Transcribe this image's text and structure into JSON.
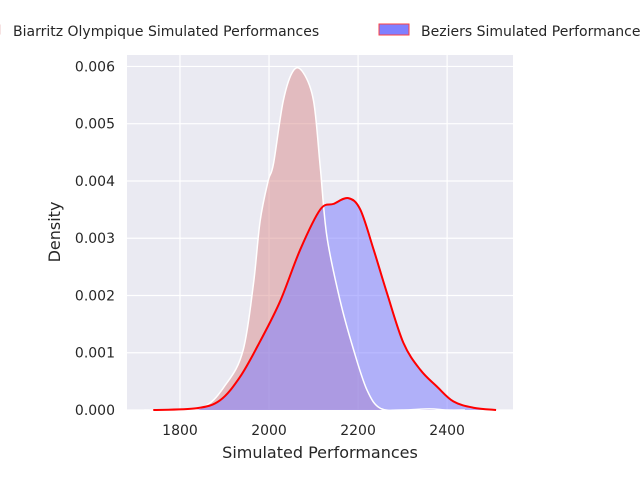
{
  "chart_data": {
    "type": "area",
    "title": "",
    "xlabel": "Simulated Performances",
    "ylabel": "Density",
    "xlim": [
      1681,
      2548
    ],
    "ylim": [
      0,
      0.0062
    ],
    "xticks": [
      1800,
      2000,
      2200,
      2400
    ],
    "xtick_labels": [
      "1800",
      "2000",
      "2200",
      "2400"
    ],
    "yticks": [
      0,
      0.001,
      0.002,
      0.003,
      0.004,
      0.005,
      0.006
    ],
    "ytick_labels": [
      "0.000",
      "0.001",
      "0.002",
      "0.003",
      "0.004",
      "0.005",
      "0.006"
    ],
    "grid": true,
    "legend_placement": "top-center outside",
    "series": [
      {
        "name": "Biarritz Olympique Simulated Performances",
        "fill": "#d98c8c",
        "edge": "#ffffff",
        "x": [
          1720,
          1845,
          1905,
          1942,
          1965,
          1980,
          1998,
          2010,
          2032,
          2055,
          2077,
          2100,
          2115,
          2130,
          2160,
          2190,
          2220,
          2250,
          2300,
          2360,
          2400,
          2440
        ],
        "y": [
          0,
          3e-05,
          0.00047,
          0.00105,
          0.0022,
          0.0033,
          0.004,
          0.0043,
          0.0054,
          0.00593,
          0.00589,
          0.0054,
          0.00425,
          0.00303,
          0.0019,
          0.00105,
          0.00035,
          3e-05,
          0.0,
          2e-05,
          0.0,
          0
        ]
      },
      {
        "name": "Beziers Simulated Performances",
        "fill": "#7f7fff",
        "edge": "#ff0000",
        "x": [
          1740,
          1837,
          1890,
          1935,
          1980,
          2025,
          2070,
          2115,
          2145,
          2178,
          2205,
          2235,
          2265,
          2302,
          2340,
          2377,
          2414,
          2459,
          2510
        ],
        "y": [
          0,
          3e-05,
          0.00017,
          0.00058,
          0.0012,
          0.0019,
          0.0028,
          0.0035,
          0.0036,
          0.0037,
          0.0035,
          0.0028,
          0.00204,
          0.00117,
          0.0007,
          0.00041,
          0.00015,
          4e-05,
          0
        ]
      }
    ]
  }
}
